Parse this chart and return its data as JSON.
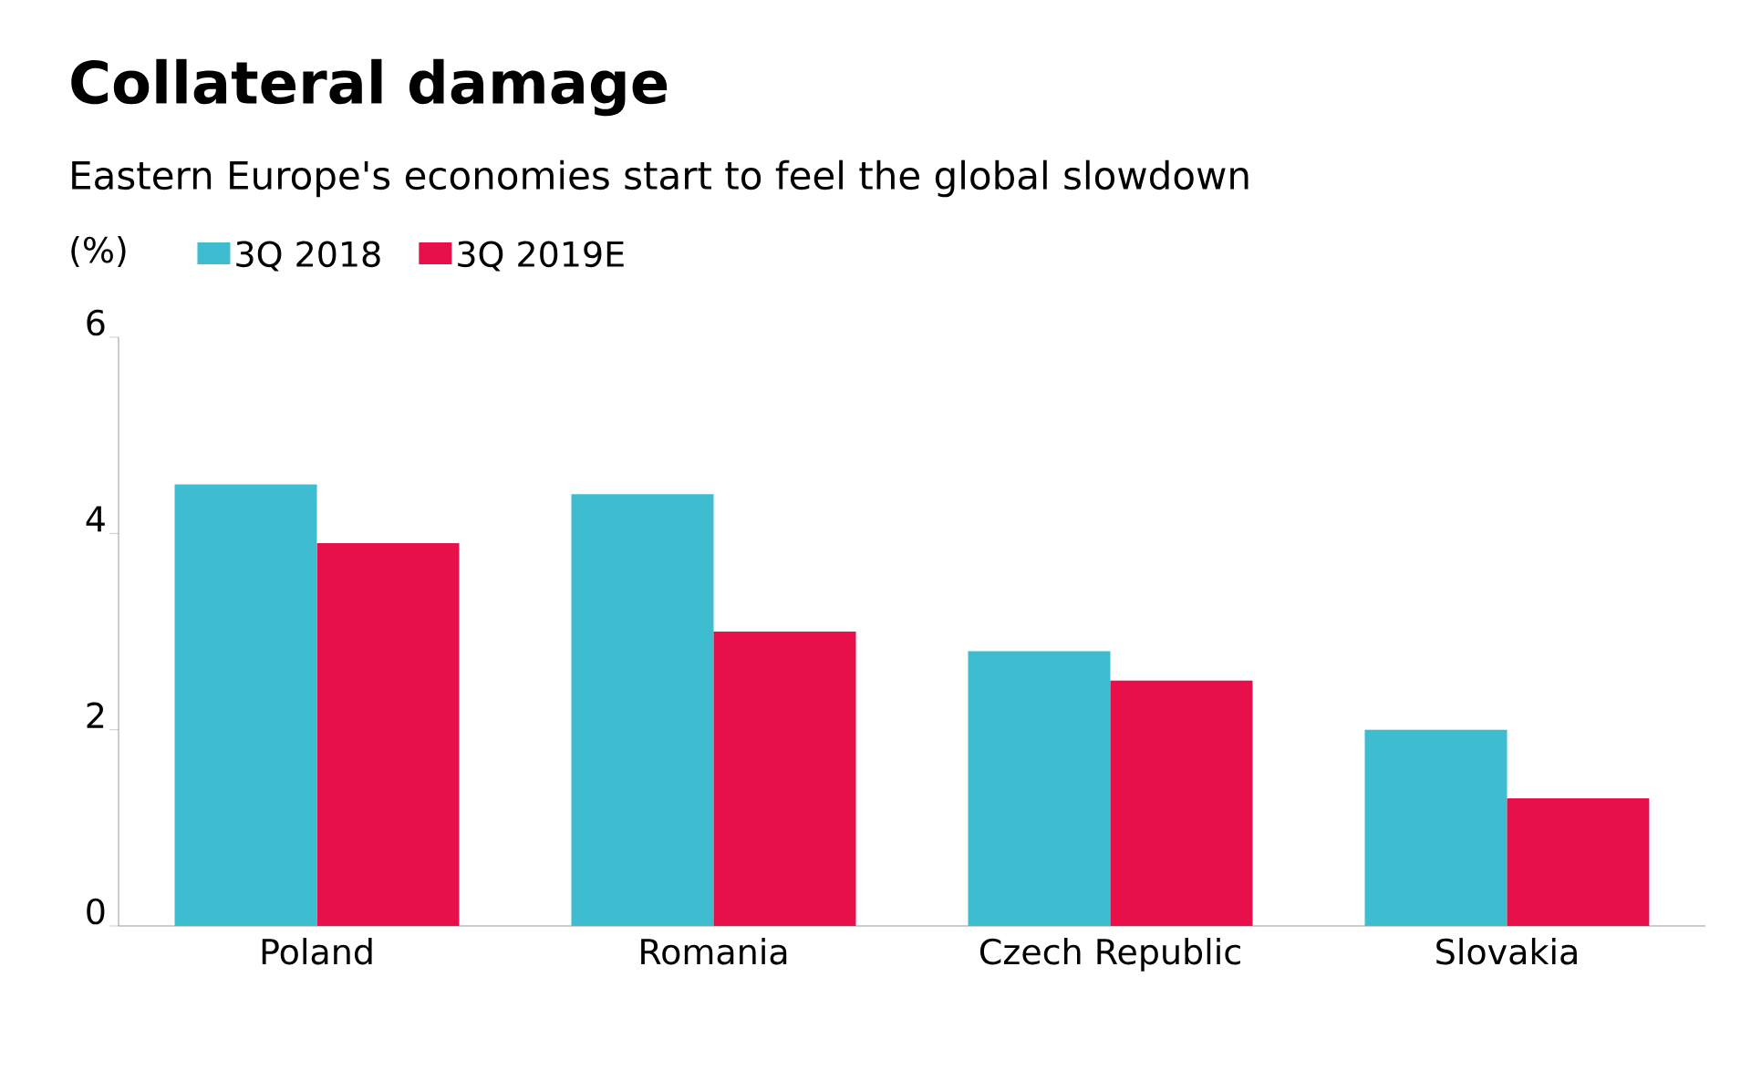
{
  "chart_data": {
    "type": "bar",
    "title": "Collateral damage",
    "subtitle": "Eastern Europe's economies start to feel the global slowdown",
    "ylabel": "(%)",
    "categories": [
      "Poland",
      "Romania",
      "Czech Republic",
      "Slovakia"
    ],
    "series": [
      {
        "name": "3Q 2018",
        "color": "#3dbdcf",
        "values": [
          4.5,
          4.4,
          2.8,
          2.0
        ]
      },
      {
        "name": "3Q 2019E",
        "color": "#e8104a",
        "values": [
          3.9,
          3.0,
          2.5,
          1.3
        ]
      }
    ],
    "ylim": [
      0,
      6
    ],
    "yticks": [
      0,
      2,
      4,
      6
    ],
    "grid": false,
    "legend": "top left"
  }
}
